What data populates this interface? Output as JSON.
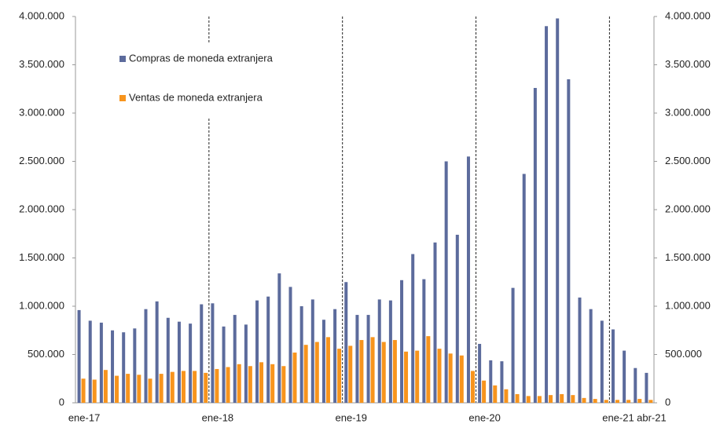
{
  "chart_data": {
    "type": "bar",
    "categories": [
      "ene-17",
      null,
      null,
      null,
      null,
      null,
      null,
      null,
      null,
      null,
      null,
      null,
      "ene-18",
      null,
      null,
      null,
      null,
      null,
      null,
      null,
      null,
      null,
      null,
      null,
      "ene-19",
      null,
      null,
      null,
      null,
      null,
      null,
      null,
      null,
      null,
      null,
      null,
      "ene-20",
      null,
      null,
      null,
      null,
      null,
      null,
      null,
      null,
      null,
      null,
      null,
      "ene-21",
      null,
      null,
      "abr-21"
    ],
    "series": [
      {
        "name": "Compras de moneda extranjera",
        "color": "#5c6b9c",
        "values": [
          960000,
          850000,
          830000,
          750000,
          730000,
          770000,
          970000,
          1050000,
          880000,
          840000,
          820000,
          1020000,
          1030000,
          790000,
          910000,
          810000,
          1060000,
          1100000,
          1340000,
          1200000,
          1000000,
          1070000,
          860000,
          970000,
          1250000,
          910000,
          910000,
          1070000,
          1060000,
          1270000,
          1540000,
          1280000,
          1660000,
          2500000,
          1740000,
          2550000,
          610000,
          440000,
          430000,
          1190000,
          2370000,
          3260000,
          3900000,
          3980000,
          3350000,
          1090000,
          970000,
          850000,
          760000,
          540000,
          360000,
          310000
        ]
      },
      {
        "name": "Ventas de moneda extranjera",
        "color": "#f7941d",
        "values": [
          250000,
          240000,
          340000,
          280000,
          300000,
          290000,
          250000,
          300000,
          320000,
          330000,
          330000,
          310000,
          350000,
          370000,
          400000,
          380000,
          420000,
          400000,
          380000,
          520000,
          600000,
          630000,
          680000,
          560000,
          590000,
          650000,
          680000,
          630000,
          650000,
          530000,
          540000,
          690000,
          560000,
          510000,
          490000,
          330000,
          230000,
          180000,
          140000,
          90000,
          70000,
          70000,
          80000,
          90000,
          80000,
          50000,
          40000,
          30000,
          30000,
          30000,
          40000,
          30000
        ]
      }
    ],
    "ylim": [
      0,
      4000000
    ],
    "yticks": [
      0,
      {
        "value": 500000,
        "label": "500.000"
      },
      {
        "value": 1000000,
        "label": "1.000.000"
      },
      {
        "value": 1500000,
        "label": "1.500.000"
      },
      {
        "value": 2000000,
        "label": "2.000.000"
      },
      {
        "value": 2500000,
        "label": "2.500.000"
      },
      {
        "value": 3000000,
        "label": "3.000.000"
      },
      {
        "value": 3500000,
        "label": "3.500.000"
      },
      {
        "value": 4000000,
        "label": "4.000.000"
      }
    ],
    "y2lim": [
      0,
      4000000
    ],
    "y2ticks": [
      0,
      {
        "value": 500000,
        "label": "500.000"
      },
      {
        "value": 1000000,
        "label": "1.000.000"
      },
      {
        "value": 1500000,
        "label": "1.500.000"
      },
      {
        "value": 2000000,
        "label": "2.000.000"
      },
      {
        "value": 2500000,
        "label": "2.500.000"
      },
      {
        "value": 3000000,
        "label": "3.000.000"
      },
      {
        "value": 3500000,
        "label": "3.500.000"
      },
      {
        "value": 4000000,
        "label": "4.000.000"
      }
    ],
    "grid": false
  }
}
